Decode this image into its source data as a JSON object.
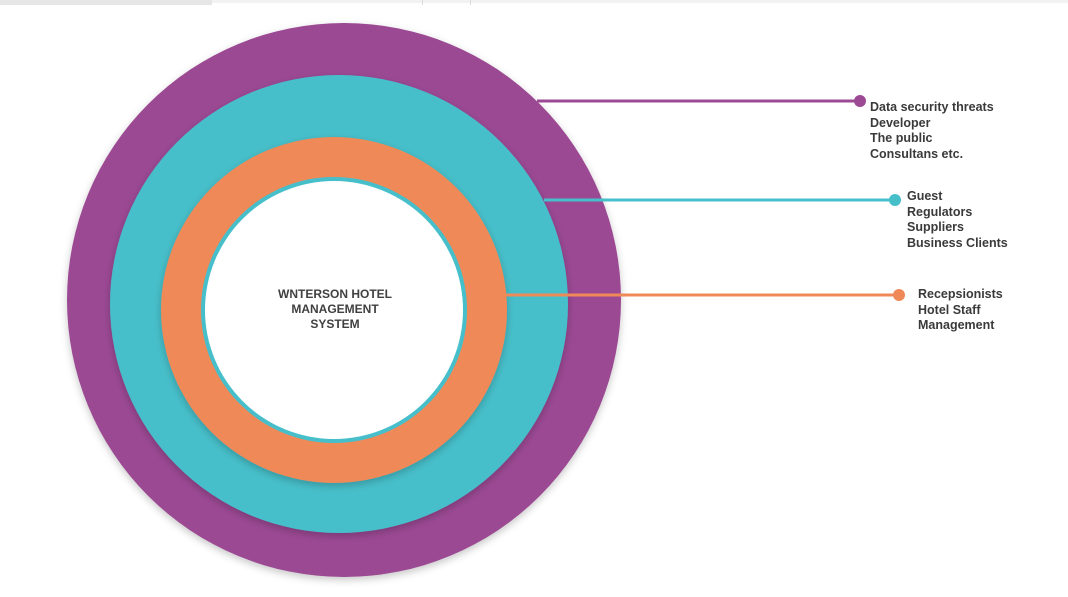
{
  "colors": {
    "outer": "#9b4a93",
    "middle": "#47bfca",
    "inner": "#ef8958",
    "core": "#ffffff",
    "text": "#3a3a3a"
  },
  "core": {
    "title": "WNTERSON HOTEL\nMANAGEMENT\nSYSTEM"
  },
  "rings": [
    {
      "id": "outer",
      "color": "#9b4a93",
      "items": [
        "Data security threats",
        "Developer",
        "The public",
        "Consultans etc."
      ]
    },
    {
      "id": "middle",
      "color": "#47bfca",
      "items": [
        "Guest",
        "Regulators",
        "Suppliers",
        "Business Clients"
      ]
    },
    {
      "id": "inner",
      "color": "#ef8958",
      "items": [
        "Recepsionists",
        "Hotel Staff",
        "Management"
      ]
    }
  ]
}
